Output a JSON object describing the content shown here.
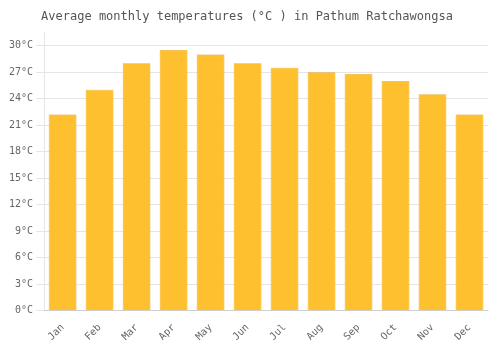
{
  "chart_data": {
    "type": "bar",
    "title": "Average monthly temperatures (°C ) in Pathum Ratchawongsa",
    "categories": [
      "Jan",
      "Feb",
      "Mar",
      "Apr",
      "May",
      "Jun",
      "Jul",
      "Aug",
      "Sep",
      "Oct",
      "Nov",
      "Dec"
    ],
    "values": [
      22.2,
      25.0,
      28.0,
      29.5,
      29.0,
      28.0,
      27.5,
      27.0,
      26.8,
      26.0,
      24.5,
      22.2
    ],
    "color": "#FFC030",
    "ylim": [
      0,
      31.5
    ],
    "yticks": [
      {
        "value": 0,
        "label": "0°C"
      },
      {
        "value": 3,
        "label": "3°C"
      },
      {
        "value": 6,
        "label": "6°C"
      },
      {
        "value": 9,
        "label": "9°C"
      },
      {
        "value": 12,
        "label": "12°C"
      },
      {
        "value": 15,
        "label": "15°C"
      },
      {
        "value": 18,
        "label": "18°C"
      },
      {
        "value": 21,
        "label": "21°C"
      },
      {
        "value": 24,
        "label": "24°C"
      },
      {
        "value": 27,
        "label": "27°C"
      },
      {
        "value": 30,
        "label": "30°C"
      }
    ],
    "grid": true
  }
}
